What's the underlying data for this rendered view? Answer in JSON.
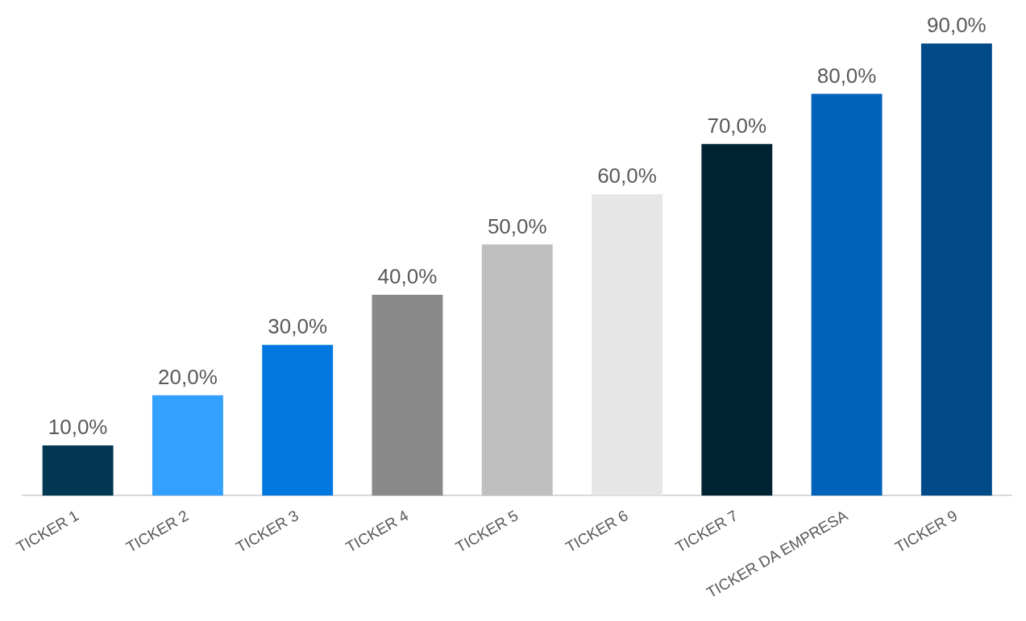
{
  "chart_data": {
    "type": "bar",
    "categories": [
      "TICKER 1",
      "TICKER 2",
      "TICKER 3",
      "TICKER 4",
      "TICKER 5",
      "TICKER 6",
      "TICKER 7",
      "TICKER DA EMPRESA",
      "TICKER 9"
    ],
    "values": [
      10,
      20,
      30,
      40,
      50,
      60,
      70,
      80,
      90
    ],
    "colors": [
      "#023852",
      "#339ffe",
      "#0078e0",
      "#898989",
      "#bfbfbf",
      "#e6e6e6",
      "#002333",
      "#0063b9",
      "#004a88"
    ],
    "value_labels": [
      "10,0%",
      "20,0%",
      "30,0%",
      "40,0%",
      "50,0%",
      "60,0%",
      "70,0%",
      "80,0%",
      "90,0%"
    ],
    "ylim": [
      0,
      90
    ],
    "grid": false,
    "legend": false
  }
}
